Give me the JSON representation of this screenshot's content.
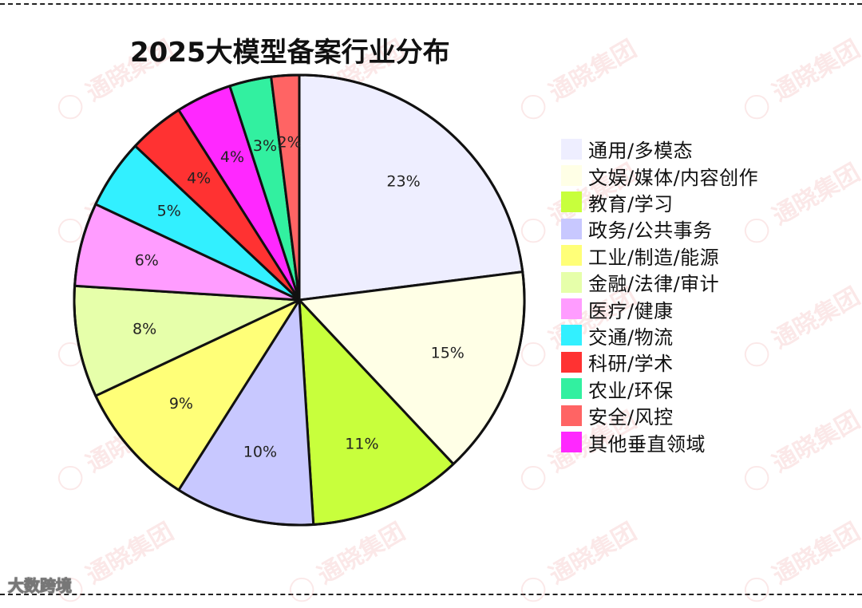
{
  "chart_data": {
    "type": "pie",
    "title": "2025大模型备案行业分布",
    "slices": [
      {
        "label": "通用/多模态",
        "value": 23,
        "display": "23%",
        "color": "#eeeeff"
      },
      {
        "label": "文娱/媒体/内容创作",
        "value": 15,
        "display": "15%",
        "color": "#ffffe6"
      },
      {
        "label": "教育/学习",
        "value": 11,
        "display": "11%",
        "color": "#c8ff3c"
      },
      {
        "label": "政务/公共事务",
        "value": 10,
        "display": "10%",
        "color": "#c8c8ff"
      },
      {
        "label": "工业/制造/能源",
        "value": 9,
        "display": "9%",
        "color": "#ffff78"
      },
      {
        "label": "金融/法律/审计",
        "value": 8,
        "display": "8%",
        "color": "#e6ffaa"
      },
      {
        "label": "医疗/健康",
        "value": 6,
        "display": "6%",
        "color": "#ff9cff"
      },
      {
        "label": "交通/物流",
        "value": 5,
        "display": "5%",
        "color": "#32f0ff"
      },
      {
        "label": "科研/学术",
        "value": 4,
        "display": "4%",
        "color": "#ff3232"
      },
      {
        "label": "其他垂直领域",
        "value": 4,
        "display": "4%",
        "color": "#ff28ff"
      },
      {
        "label": "农业/环保",
        "value": 3,
        "display": "3%",
        "color": "#32f0a0"
      },
      {
        "label": "安全/风控",
        "value": 2,
        "display": "2%",
        "color": "#ff6464"
      }
    ],
    "legend": {
      "placement": "right",
      "order": [
        "通用/多模态",
        "文娱/媒体/内容创作",
        "教育/学习",
        "政务/公共事务",
        "工业/制造/能源",
        "金融/法律/审计",
        "医疗/健康",
        "交通/物流",
        "科研/学术",
        "农业/环保",
        "安全/风控",
        "其他垂直领域"
      ]
    },
    "start_angle": "12 o'clock",
    "direction": "clockwise"
  },
  "brand": "大数跨境"
}
